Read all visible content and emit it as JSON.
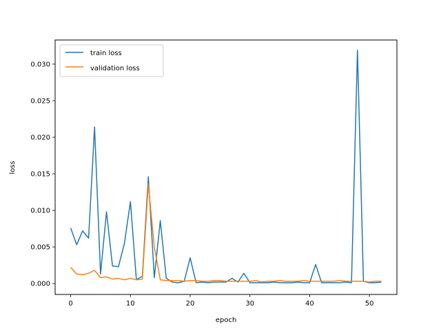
{
  "chart_data": {
    "type": "line",
    "xlabel": "epoch",
    "ylabel": "loss",
    "xlim": [
      -2.6,
      54.6
    ],
    "ylim": [
      -0.0015,
      0.0333
    ],
    "xticks": [
      0,
      10,
      20,
      30,
      40,
      50
    ],
    "yticks": [
      0.0,
      0.005,
      0.01,
      0.015,
      0.02,
      0.025,
      0.03
    ],
    "ytick_labels": [
      "0.000",
      "0.005",
      "0.010",
      "0.015",
      "0.020",
      "0.025",
      "0.030"
    ],
    "grid": false,
    "legend": "upper-left",
    "x": [
      0,
      1,
      2,
      3,
      4,
      5,
      6,
      7,
      8,
      9,
      10,
      11,
      12,
      13,
      14,
      15,
      16,
      17,
      18,
      19,
      20,
      21,
      22,
      23,
      24,
      25,
      26,
      27,
      28,
      29,
      30,
      31,
      32,
      33,
      34,
      35,
      36,
      37,
      38,
      39,
      40,
      41,
      42,
      43,
      44,
      45,
      46,
      47,
      48,
      49,
      50,
      51,
      52
    ],
    "series": [
      {
        "name": "train loss",
        "color": "#1f77b4",
        "values": [
          0.0076,
          0.0053,
          0.0072,
          0.0062,
          0.0214,
          0.0013,
          0.0098,
          0.0024,
          0.0023,
          0.0055,
          0.0112,
          0.0005,
          0.001,
          0.0146,
          0.0008,
          0.0086,
          0.0007,
          0.0002,
          0.0001,
          0.0003,
          0.0035,
          0.0001,
          0.0002,
          0.0001,
          0.0002,
          0.0002,
          0.0002,
          0.0007,
          0.0002,
          0.0014,
          0.0001,
          0.0001,
          0.0001,
          0.0001,
          0.0002,
          0.0001,
          0.0001,
          0.0001,
          0.0002,
          0.0001,
          0.0001,
          0.0026,
          0.0001,
          0.0001,
          0.0001,
          0.0001,
          0.0002,
          0.0001,
          0.0319,
          0.0003,
          0.0001,
          0.0001,
          0.0002
        ]
      },
      {
        "name": "validation loss",
        "color": "#ff7f0e",
        "values": [
          0.0022,
          0.0013,
          0.0012,
          0.0014,
          0.0018,
          0.0008,
          0.0009,
          0.0006,
          0.0007,
          0.0005,
          0.0007,
          0.0005,
          0.0006,
          0.0136,
          0.005,
          0.0005,
          0.0004,
          0.0004,
          0.0004,
          0.0003,
          0.0004,
          0.0004,
          0.0003,
          0.0003,
          0.0004,
          0.0004,
          0.0003,
          0.0003,
          0.0003,
          0.0003,
          0.0003,
          0.0004,
          0.0002,
          0.0003,
          0.0003,
          0.0004,
          0.0003,
          0.0003,
          0.0003,
          0.0004,
          0.0003,
          0.0003,
          0.0003,
          0.0003,
          0.0003,
          0.0004,
          0.0003,
          0.0003,
          0.0003,
          0.0003,
          0.0002,
          0.0003,
          0.0003
        ]
      }
    ]
  }
}
